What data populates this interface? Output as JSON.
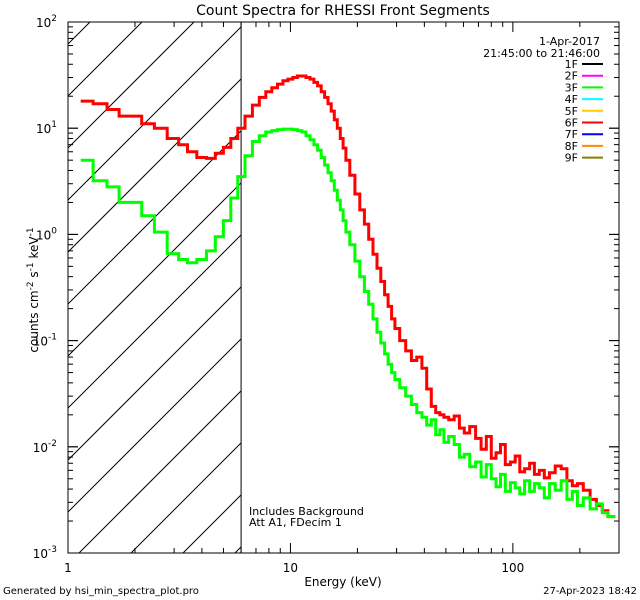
{
  "chart_data": {
    "type": "line",
    "title": "Count Spectra for RHESSI Front Segments",
    "xlabel": "Energy (keV)",
    "ylabel": "counts cm-2 s-1 keV-1",
    "xscale": "log",
    "yscale": "log",
    "xlim": [
      1,
      300
    ],
    "ylim": [
      0.001,
      100
    ],
    "x_ticks": [
      {
        "value": 1,
        "label": "1"
      },
      {
        "value": 10,
        "label": "10"
      },
      {
        "value": 100,
        "label": "100"
      }
    ],
    "y_ticks": [
      {
        "value": 0.001,
        "base": "10",
        "exp": "-3"
      },
      {
        "value": 0.01,
        "base": "10",
        "exp": "-2"
      },
      {
        "value": 0.1,
        "base": "10",
        "exp": "-1"
      },
      {
        "value": 1,
        "base": "10",
        "exp": "0"
      },
      {
        "value": 10,
        "base": "10",
        "exp": "1"
      },
      {
        "value": 100,
        "base": "10",
        "exp": "2"
      }
    ],
    "date": "1-Apr-2017",
    "time_range": "21:45:00 to 21:46:00",
    "attenuator_energy_keV": 6,
    "annotations": [
      "Includes Background",
      "Att A1, FDecim 1"
    ],
    "legend": [
      {
        "name": "1F",
        "color": "#000000"
      },
      {
        "name": "2F",
        "color": "#ff00ff"
      },
      {
        "name": "3F",
        "color": "#00ff00"
      },
      {
        "name": "4F",
        "color": "#00ffff"
      },
      {
        "name": "5F",
        "color": "#ffcc00"
      },
      {
        "name": "6F",
        "color": "#ff0000"
      },
      {
        "name": "7F",
        "color": "#0000ff"
      },
      {
        "name": "8F",
        "color": "#ff8800"
      },
      {
        "name": "9F",
        "color": "#808000"
      }
    ],
    "series": [
      {
        "name": "6F",
        "color": "#ff0000",
        "points": [
          [
            1.2,
            18
          ],
          [
            1.4,
            17
          ],
          [
            1.6,
            15
          ],
          [
            1.8,
            13
          ],
          [
            2.0,
            13
          ],
          [
            2.3,
            11
          ],
          [
            2.6,
            10
          ],
          [
            3.0,
            8
          ],
          [
            3.3,
            7
          ],
          [
            3.6,
            6
          ],
          [
            4.0,
            5.3
          ],
          [
            4.4,
            5.2
          ],
          [
            4.8,
            5.8
          ],
          [
            5.2,
            6.6
          ],
          [
            5.6,
            8
          ],
          [
            6.0,
            10
          ],
          [
            6.5,
            13
          ],
          [
            7.0,
            16.5
          ],
          [
            7.5,
            19.5
          ],
          [
            8.0,
            22
          ],
          [
            8.5,
            24
          ],
          [
            9.0,
            26
          ],
          [
            9.5,
            28
          ],
          [
            10,
            29
          ],
          [
            10.5,
            30
          ],
          [
            11,
            31
          ],
          [
            11.5,
            31
          ],
          [
            12,
            30
          ],
          [
            12.5,
            29
          ],
          [
            13,
            27
          ],
          [
            13.5,
            25
          ],
          [
            14,
            22
          ],
          [
            14.5,
            19.5
          ],
          [
            15,
            17
          ],
          [
            15.5,
            14.5
          ],
          [
            16,
            12
          ],
          [
            16.5,
            10
          ],
          [
            17,
            8
          ],
          [
            17.5,
            6.5
          ],
          [
            18,
            5
          ],
          [
            19,
            3.6
          ],
          [
            20,
            2.4
          ],
          [
            21,
            1.7
          ],
          [
            22,
            1.25
          ],
          [
            23,
            0.9
          ],
          [
            24,
            0.65
          ],
          [
            25,
            0.48
          ],
          [
            26,
            0.36
          ],
          [
            27,
            0.27
          ],
          [
            28,
            0.21
          ],
          [
            29,
            0.16
          ],
          [
            30,
            0.13
          ],
          [
            32,
            0.1
          ],
          [
            34,
            0.08
          ],
          [
            36,
            0.065
          ],
          [
            38,
            0.07
          ],
          [
            40,
            0.055
          ],
          [
            42,
            0.035
          ],
          [
            44,
            0.024
          ],
          [
            46,
            0.021
          ],
          [
            48,
            0.02
          ],
          [
            50,
            0.019
          ],
          [
            53,
            0.018
          ],
          [
            56,
            0.0195
          ],
          [
            59,
            0.015
          ],
          [
            62,
            0.0135
          ],
          [
            66,
            0.0155
          ],
          [
            70,
            0.012
          ],
          [
            74,
            0.0095
          ],
          [
            78,
            0.0125
          ],
          [
            82,
            0.0078
          ],
          [
            86,
            0.0088
          ],
          [
            90,
            0.0105
          ],
          [
            95,
            0.0068
          ],
          [
            100,
            0.0072
          ],
          [
            105,
            0.0082
          ],
          [
            110,
            0.0058
          ],
          [
            116,
            0.0062
          ],
          [
            122,
            0.007
          ],
          [
            128,
            0.0055
          ],
          [
            135,
            0.006
          ],
          [
            142,
            0.0051
          ],
          [
            150,
            0.0057
          ],
          [
            160,
            0.0066
          ],
          [
            170,
            0.0062
          ],
          [
            180,
            0.0048
          ],
          [
            190,
            0.0043
          ],
          [
            200,
            0.0045
          ],
          [
            215,
            0.0039
          ],
          [
            230,
            0.0032
          ],
          [
            245,
            0.0028
          ],
          [
            260,
            0.0025
          ],
          [
            275,
            0.0022
          ]
        ]
      },
      {
        "name": "3F",
        "color": "#00ff00",
        "points": [
          [
            1.2,
            5
          ],
          [
            1.4,
            3.2
          ],
          [
            1.6,
            2.8
          ],
          [
            1.8,
            2.0
          ],
          [
            2.0,
            2.0
          ],
          [
            2.3,
            1.5
          ],
          [
            2.6,
            1.05
          ],
          [
            3.0,
            0.66
          ],
          [
            3.3,
            0.58
          ],
          [
            3.6,
            0.54
          ],
          [
            4.0,
            0.58
          ],
          [
            4.4,
            0.7
          ],
          [
            4.8,
            0.95
          ],
          [
            5.2,
            1.35
          ],
          [
            5.6,
            2.2
          ],
          [
            6.0,
            3.5
          ],
          [
            6.5,
            5.5
          ],
          [
            7.0,
            7.5
          ],
          [
            7.5,
            8.5
          ],
          [
            8.0,
            9.2
          ],
          [
            8.5,
            9.5
          ],
          [
            9.0,
            9.7
          ],
          [
            9.5,
            9.8
          ],
          [
            10,
            9.8
          ],
          [
            10.5,
            9.7
          ],
          [
            11,
            9.5
          ],
          [
            11.5,
            9.2
          ],
          [
            12,
            8.5
          ],
          [
            12.5,
            7.8
          ],
          [
            13,
            7.0
          ],
          [
            13.5,
            6.2
          ],
          [
            14,
            5.3
          ],
          [
            14.5,
            4.5
          ],
          [
            15,
            3.8
          ],
          [
            15.5,
            3.2
          ],
          [
            16,
            2.6
          ],
          [
            16.5,
            2.1
          ],
          [
            17,
            1.7
          ],
          [
            17.5,
            1.35
          ],
          [
            18,
            1.05
          ],
          [
            19,
            0.8
          ],
          [
            20,
            0.56
          ],
          [
            21,
            0.4
          ],
          [
            22,
            0.29
          ],
          [
            23,
            0.22
          ],
          [
            24,
            0.16
          ],
          [
            25,
            0.12
          ],
          [
            26,
            0.095
          ],
          [
            27,
            0.075
          ],
          [
            28,
            0.06
          ],
          [
            29,
            0.05
          ],
          [
            30,
            0.043
          ],
          [
            32,
            0.036
          ],
          [
            34,
            0.03
          ],
          [
            36,
            0.025
          ],
          [
            38,
            0.021
          ],
          [
            40,
            0.019
          ],
          [
            42,
            0.016
          ],
          [
            44,
            0.018
          ],
          [
            46,
            0.013
          ],
          [
            48,
            0.0145
          ],
          [
            50,
            0.011
          ],
          [
            53,
            0.0125
          ],
          [
            56,
            0.0105
          ],
          [
            59,
            0.008
          ],
          [
            62,
            0.0085
          ],
          [
            66,
            0.0065
          ],
          [
            70,
            0.0072
          ],
          [
            74,
            0.0052
          ],
          [
            78,
            0.0068
          ],
          [
            82,
            0.005
          ],
          [
            86,
            0.0042
          ],
          [
            90,
            0.0055
          ],
          [
            95,
            0.0038
          ],
          [
            100,
            0.0046
          ],
          [
            105,
            0.0041
          ],
          [
            110,
            0.0036
          ],
          [
            116,
            0.0048
          ],
          [
            122,
            0.0038
          ],
          [
            128,
            0.0045
          ],
          [
            135,
            0.0041
          ],
          [
            142,
            0.0033
          ],
          [
            150,
            0.0045
          ],
          [
            160,
            0.0039
          ],
          [
            170,
            0.0048
          ],
          [
            180,
            0.0032
          ],
          [
            190,
            0.0038
          ],
          [
            200,
            0.0028
          ],
          [
            215,
            0.0033
          ],
          [
            230,
            0.0026
          ],
          [
            245,
            0.0029
          ],
          [
            260,
            0.0024
          ],
          [
            275,
            0.0022
          ]
        ]
      }
    ]
  },
  "footer": {
    "left": "Generated by hsi_min_spectra_plot.pro",
    "right": "27-Apr-2023 18:42"
  }
}
